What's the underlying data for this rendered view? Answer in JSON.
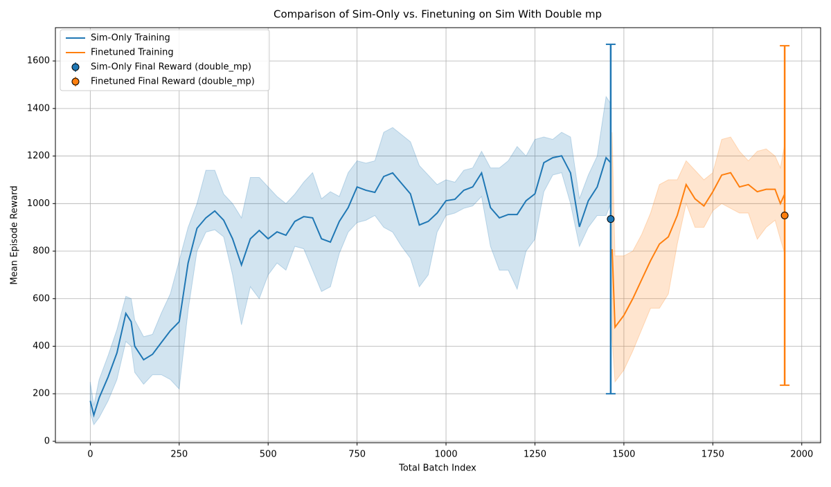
{
  "chart_data": {
    "type": "line",
    "title": "Comparison of Sim-Only vs. Finetuning on Sim With Double mp",
    "x_label": "Total Batch Index",
    "y_label": "Mean Episode Reward",
    "xlim": [
      -98,
      2053
    ],
    "ylim": [
      -6,
      1740
    ],
    "xticks": [
      0,
      250,
      500,
      750,
      1000,
      1250,
      1500,
      1750,
      2000
    ],
    "yticks": [
      0,
      200,
      400,
      600,
      800,
      1000,
      1200,
      1400,
      1600
    ],
    "grid": true,
    "legend": "upper left",
    "series": [
      {
        "name": "Sim-Only Training",
        "color": "#1f77b4",
        "x": [
          0,
          10,
          25,
          50,
          75,
          100,
          115,
          125,
          150,
          175,
          200,
          225,
          250,
          275,
          300,
          325,
          350,
          375,
          400,
          425,
          450,
          475,
          500,
          525,
          550,
          575,
          600,
          625,
          650,
          675,
          700,
          725,
          750,
          775,
          800,
          825,
          850,
          875,
          900,
          925,
          950,
          975,
          1000,
          1025,
          1050,
          1075,
          1100,
          1125,
          1150,
          1175,
          1200,
          1225,
          1250,
          1275,
          1300,
          1325,
          1350,
          1375,
          1400,
          1425,
          1450,
          1463
        ],
        "values": [
          170,
          110,
          183,
          270,
          372,
          538,
          503,
          400,
          343,
          366,
          416,
          465,
          503,
          750,
          896,
          940,
          969,
          930,
          852,
          742,
          852,
          887,
          852,
          881,
          867,
          925,
          945,
          940,
          852,
          838,
          925,
          983,
          1070,
          1056,
          1047,
          1114,
          1129,
          1085,
          1041,
          910,
          925,
          960,
          1012,
          1018,
          1056,
          1070,
          1129,
          983,
          940,
          954,
          954,
          1012,
          1041,
          1172,
          1193,
          1201,
          1129,
          902,
          1012,
          1070,
          1193,
          1172
        ],
        "band_lower": [
          120,
          70,
          100,
          170,
          260,
          420,
          400,
          290,
          240,
          280,
          280,
          260,
          220,
          550,
          800,
          880,
          890,
          860,
          700,
          490,
          650,
          600,
          700,
          750,
          720,
          820,
          810,
          720,
          630,
          650,
          790,
          880,
          920,
          930,
          950,
          900,
          880,
          820,
          770,
          650,
          700,
          880,
          950,
          960,
          980,
          990,
          1030,
          820,
          720,
          720,
          640,
          800,
          850,
          1050,
          1120,
          1130,
          1000,
          820,
          900,
          950,
          950,
          1000
        ],
        "band_upper": [
          250,
          150,
          260,
          360,
          470,
          610,
          600,
          510,
          440,
          450,
          540,
          620,
          760,
          900,
          1000,
          1140,
          1140,
          1040,
          1000,
          940,
          1110,
          1110,
          1070,
          1030,
          1000,
          1040,
          1090,
          1130,
          1020,
          1050,
          1030,
          1130,
          1180,
          1170,
          1180,
          1300,
          1320,
          1290,
          1260,
          1160,
          1120,
          1080,
          1100,
          1090,
          1140,
          1150,
          1220,
          1150,
          1150,
          1180,
          1240,
          1200,
          1270,
          1280,
          1270,
          1300,
          1280,
          1020,
          1120,
          1200,
          1450,
          1420
        ]
      },
      {
        "name": "Finetuned Training",
        "color": "#ff7f0e",
        "x": [
          1467,
          1475,
          1500,
          1525,
          1550,
          1575,
          1600,
          1625,
          1650,
          1675,
          1700,
          1725,
          1750,
          1775,
          1800,
          1825,
          1850,
          1875,
          1900,
          1925,
          1940,
          1952
        ],
        "values": [
          808,
          480,
          530,
          600,
          680,
          760,
          830,
          860,
          950,
          1080,
          1020,
          990,
          1050,
          1120,
          1130,
          1070,
          1080,
          1050,
          1060,
          1060,
          1000,
          1040
        ],
        "band_lower": [
          430,
          250,
          300,
          380,
          470,
          560,
          560,
          620,
          830,
          1000,
          900,
          900,
          970,
          1000,
          980,
          960,
          960,
          850,
          900,
          930,
          850,
          790
        ],
        "band_upper": [
          1300,
          780,
          780,
          800,
          870,
          960,
          1080,
          1100,
          1100,
          1180,
          1140,
          1100,
          1130,
          1270,
          1280,
          1220,
          1180,
          1220,
          1230,
          1200,
          1150,
          1250
        ]
      }
    ],
    "final_points": [
      {
        "name": "Sim-Only Final Reward (double_mp)",
        "color": "#1f77b4",
        "x": 1463,
        "value": 935,
        "error": 735
      },
      {
        "name": "Finetuned Final Reward (double_mp)",
        "color": "#ff7f0e",
        "x": 1952,
        "value": 950,
        "error": 714
      }
    ]
  }
}
